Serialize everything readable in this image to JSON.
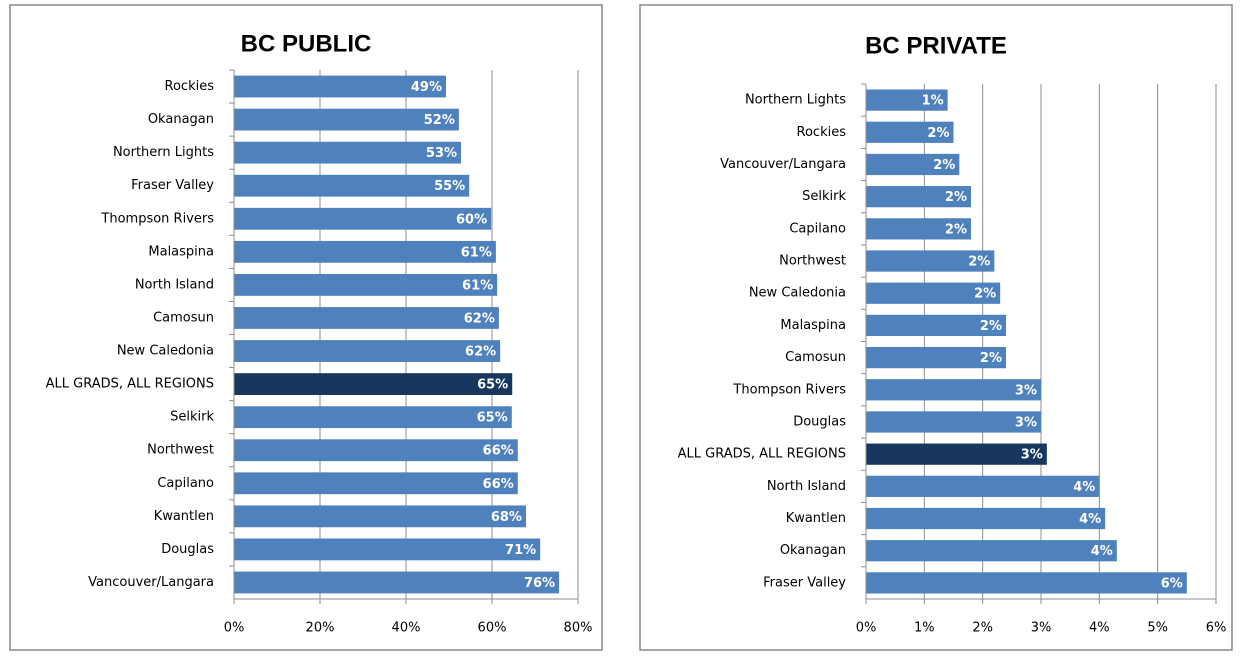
{
  "chart_data": [
    {
      "type": "bar",
      "orientation": "horizontal",
      "title": "BC PUBLIC",
      "categories": [
        "Rockies",
        "Okanagan",
        "Northern Lights",
        "Fraser Valley",
        "Thompson Rivers",
        "Malaspina",
        "North Island",
        "Camosun",
        "New Caledonia",
        "ALL GRADS, ALL REGIONS",
        "Selkirk",
        "Northwest",
        "Capilano",
        "Kwantlen",
        "Douglas",
        "Vancouver/Langara"
      ],
      "values": [
        49.3,
        52.3,
        52.8,
        54.7,
        59.8,
        60.9,
        61.2,
        61.6,
        61.9,
        64.7,
        64.6,
        66.0,
        66.0,
        67.9,
        71.2,
        75.6
      ],
      "value_labels": [
        "49%",
        "52%",
        "53%",
        "55%",
        "60%",
        "61%",
        "61%",
        "62%",
        "62%",
        "65%",
        "65%",
        "66%",
        "66%",
        "68%",
        "71%",
        "76%"
      ],
      "colors": [
        "#4f81bd",
        "#4f81bd",
        "#4f81bd",
        "#4f81bd",
        "#4f81bd",
        "#4f81bd",
        "#4f81bd",
        "#4f81bd",
        "#4f81bd",
        "#17375e",
        "#4f81bd",
        "#4f81bd",
        "#4f81bd",
        "#4f81bd",
        "#4f81bd",
        "#4f81bd"
      ],
      "xlim": [
        0,
        80
      ],
      "xticks": [
        {
          "value": 0,
          "label": "0%"
        },
        {
          "value": 20,
          "label": "20%"
        },
        {
          "value": 40,
          "label": "40%"
        },
        {
          "value": 60,
          "label": "60%"
        },
        {
          "value": 80,
          "label": "80%"
        }
      ],
      "grid": true
    },
    {
      "type": "bar",
      "orientation": "horizontal",
      "title": "BC PRIVATE",
      "categories": [
        "Northern Lights",
        "Rockies",
        "Vancouver/Langara",
        "Selkirk",
        "Capilano",
        "Northwest",
        "New Caledonia",
        "Malaspina",
        "Camosun",
        "Thompson Rivers",
        "Douglas",
        "ALL GRADS, ALL REGIONS",
        "North Island",
        "Kwantlen",
        "Okanagan",
        "Fraser Valley"
      ],
      "values": [
        1.4,
        1.5,
        1.6,
        1.8,
        1.8,
        2.2,
        2.3,
        2.4,
        2.4,
        3.0,
        3.0,
        3.1,
        4.0,
        4.1,
        4.3,
        5.5
      ],
      "value_labels": [
        "1%",
        "2%",
        "2%",
        "2%",
        "2%",
        "2%",
        "2%",
        "2%",
        "2%",
        "3%",
        "3%",
        "3%",
        "4%",
        "4%",
        "4%",
        "6%"
      ],
      "colors": [
        "#4f81bd",
        "#4f81bd",
        "#4f81bd",
        "#4f81bd",
        "#4f81bd",
        "#4f81bd",
        "#4f81bd",
        "#4f81bd",
        "#4f81bd",
        "#4f81bd",
        "#4f81bd",
        "#17375e",
        "#4f81bd",
        "#4f81bd",
        "#4f81bd",
        "#4f81bd"
      ],
      "xlim": [
        0,
        6
      ],
      "xticks": [
        {
          "value": 0,
          "label": "0%"
        },
        {
          "value": 1,
          "label": "1%"
        },
        {
          "value": 2,
          "label": "2%"
        },
        {
          "value": 3,
          "label": "3%"
        },
        {
          "value": 4,
          "label": "4%"
        },
        {
          "value": 5,
          "label": "5%"
        },
        {
          "value": 6,
          "label": "6%"
        }
      ],
      "grid": true
    }
  ]
}
